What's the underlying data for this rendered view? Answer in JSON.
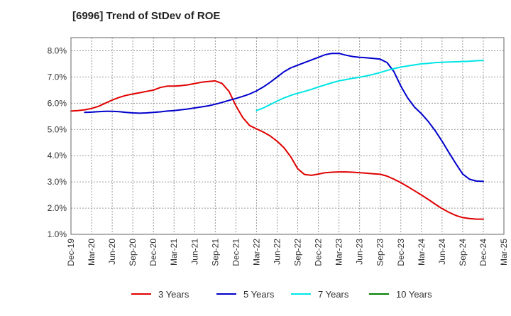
{
  "chart_data": {
    "type": "line",
    "title": "[6996]  Trend of StDev of ROE",
    "xlabel": "",
    "ylabel": "",
    "x_tick_labels": [
      "Dec-19",
      "Mar-20",
      "Jun-20",
      "Sep-20",
      "Dec-20",
      "Mar-21",
      "Jun-21",
      "Sep-21",
      "Dec-21",
      "Mar-22",
      "Jun-22",
      "Sep-22",
      "Dec-22",
      "Mar-23",
      "Jun-23",
      "Sep-23",
      "Dec-23",
      "Mar-24",
      "Jun-24",
      "Sep-24",
      "Dec-24",
      "Mar-25"
    ],
    "y_tick_labels": [
      "1.0%",
      "2.0%",
      "3.0%",
      "4.0%",
      "5.0%",
      "6.0%",
      "7.0%",
      "8.0%"
    ],
    "ylim": [
      1.0,
      8.5
    ],
    "grid": true,
    "legend_position": "bottom",
    "series": [
      {
        "name": "3 Years",
        "color": "#e00000",
        "points": [
          [
            "Dec-19",
            5.7
          ],
          [
            "Jan-20",
            5.72
          ],
          [
            "Feb-20",
            5.75
          ],
          [
            "Mar-20",
            5.8
          ],
          [
            "Apr-20",
            5.88
          ],
          [
            "May-20",
            6.0
          ],
          [
            "Jun-20",
            6.12
          ],
          [
            "Jul-20",
            6.22
          ],
          [
            "Aug-20",
            6.3
          ],
          [
            "Sep-20",
            6.35
          ],
          [
            "Oct-20",
            6.4
          ],
          [
            "Nov-20",
            6.45
          ],
          [
            "Dec-20",
            6.5
          ],
          [
            "Jan-21",
            6.6
          ],
          [
            "Feb-21",
            6.65
          ],
          [
            "Mar-21",
            6.65
          ],
          [
            "Apr-21",
            6.67
          ],
          [
            "May-21",
            6.7
          ],
          [
            "Jun-21",
            6.75
          ],
          [
            "Jul-21",
            6.8
          ],
          [
            "Aug-21",
            6.83
          ],
          [
            "Sep-21",
            6.85
          ],
          [
            "Oct-21",
            6.75
          ],
          [
            "Nov-21",
            6.45
          ],
          [
            "Dec-21",
            5.9
          ],
          [
            "Jan-22",
            5.45
          ],
          [
            "Feb-22",
            5.15
          ],
          [
            "Mar-22",
            5.02
          ],
          [
            "Apr-22",
            4.9
          ],
          [
            "May-22",
            4.75
          ],
          [
            "Jun-22",
            4.55
          ],
          [
            "Jul-22",
            4.3
          ],
          [
            "Aug-22",
            3.95
          ],
          [
            "Sep-22",
            3.5
          ],
          [
            "Oct-22",
            3.28
          ],
          [
            "Nov-22",
            3.25
          ],
          [
            "Dec-22",
            3.3
          ],
          [
            "Jan-23",
            3.35
          ],
          [
            "Feb-23",
            3.37
          ],
          [
            "Mar-23",
            3.38
          ],
          [
            "Apr-23",
            3.38
          ],
          [
            "May-23",
            3.37
          ],
          [
            "Jun-23",
            3.35
          ],
          [
            "Jul-23",
            3.33
          ],
          [
            "Aug-23",
            3.31
          ],
          [
            "Sep-23",
            3.29
          ],
          [
            "Oct-23",
            3.22
          ],
          [
            "Nov-23",
            3.1
          ],
          [
            "Dec-23",
            2.97
          ],
          [
            "Jan-24",
            2.82
          ],
          [
            "Feb-24",
            2.66
          ],
          [
            "Mar-24",
            2.5
          ],
          [
            "Apr-24",
            2.33
          ],
          [
            "May-24",
            2.15
          ],
          [
            "Jun-24",
            1.98
          ],
          [
            "Jul-24",
            1.84
          ],
          [
            "Aug-24",
            1.72
          ],
          [
            "Sep-24",
            1.64
          ],
          [
            "Oct-24",
            1.6
          ],
          [
            "Nov-24",
            1.58
          ],
          [
            "Dec-24",
            1.58
          ]
        ]
      },
      {
        "name": "5 Years",
        "color": "#0000cc",
        "points": [
          [
            "Feb-20",
            5.65
          ],
          [
            "Mar-20",
            5.66
          ],
          [
            "Apr-20",
            5.68
          ],
          [
            "May-20",
            5.69
          ],
          [
            "Jun-20",
            5.69
          ],
          [
            "Jul-20",
            5.68
          ],
          [
            "Aug-20",
            5.65
          ],
          [
            "Sep-20",
            5.63
          ],
          [
            "Oct-20",
            5.62
          ],
          [
            "Nov-20",
            5.63
          ],
          [
            "Dec-20",
            5.65
          ],
          [
            "Jan-21",
            5.67
          ],
          [
            "Feb-21",
            5.7
          ],
          [
            "Mar-21",
            5.72
          ],
          [
            "Apr-21",
            5.75
          ],
          [
            "May-21",
            5.78
          ],
          [
            "Jun-21",
            5.82
          ],
          [
            "Jul-21",
            5.86
          ],
          [
            "Aug-21",
            5.9
          ],
          [
            "Sep-21",
            5.96
          ],
          [
            "Oct-21",
            6.03
          ],
          [
            "Nov-21",
            6.11
          ],
          [
            "Dec-21",
            6.18
          ],
          [
            "Jan-22",
            6.26
          ],
          [
            "Feb-22",
            6.35
          ],
          [
            "Mar-22",
            6.47
          ],
          [
            "Apr-22",
            6.62
          ],
          [
            "May-22",
            6.8
          ],
          [
            "Jun-22",
            7.0
          ],
          [
            "Jul-22",
            7.2
          ],
          [
            "Aug-22",
            7.35
          ],
          [
            "Sep-22",
            7.45
          ],
          [
            "Oct-22",
            7.55
          ],
          [
            "Nov-22",
            7.65
          ],
          [
            "Dec-22",
            7.75
          ],
          [
            "Jan-23",
            7.85
          ],
          [
            "Feb-23",
            7.9
          ],
          [
            "Mar-23",
            7.9
          ],
          [
            "Apr-23",
            7.83
          ],
          [
            "May-23",
            7.78
          ],
          [
            "Jun-23",
            7.75
          ],
          [
            "Jul-23",
            7.73
          ],
          [
            "Aug-23",
            7.71
          ],
          [
            "Sep-23",
            7.68
          ],
          [
            "Oct-23",
            7.55
          ],
          [
            "Nov-23",
            7.2
          ],
          [
            "Dec-23",
            6.65
          ],
          [
            "Jan-24",
            6.2
          ],
          [
            "Feb-24",
            5.85
          ],
          [
            "Mar-24",
            5.6
          ],
          [
            "Apr-24",
            5.3
          ],
          [
            "May-24",
            4.95
          ],
          [
            "Jun-24",
            4.55
          ],
          [
            "Jul-24",
            4.12
          ],
          [
            "Aug-24",
            3.7
          ],
          [
            "Sep-24",
            3.3
          ],
          [
            "Oct-24",
            3.1
          ],
          [
            "Nov-24",
            3.03
          ],
          [
            "Dec-24",
            3.02
          ]
        ]
      },
      {
        "name": "7 Years",
        "color": "#00e5e5",
        "points": [
          [
            "Mar-22",
            5.72
          ],
          [
            "Apr-22",
            5.82
          ],
          [
            "May-22",
            5.95
          ],
          [
            "Jun-22",
            6.08
          ],
          [
            "Jul-22",
            6.2
          ],
          [
            "Aug-22",
            6.3
          ],
          [
            "Sep-22",
            6.38
          ],
          [
            "Oct-22",
            6.45
          ],
          [
            "Nov-22",
            6.53
          ],
          [
            "Dec-22",
            6.62
          ],
          [
            "Jan-23",
            6.7
          ],
          [
            "Feb-23",
            6.78
          ],
          [
            "Mar-23",
            6.85
          ],
          [
            "Apr-23",
            6.9
          ],
          [
            "May-23",
            6.95
          ],
          [
            "Jun-23",
            6.99
          ],
          [
            "Jul-23",
            7.04
          ],
          [
            "Aug-23",
            7.1
          ],
          [
            "Sep-23",
            7.17
          ],
          [
            "Oct-23",
            7.25
          ],
          [
            "Nov-23",
            7.32
          ],
          [
            "Dec-23",
            7.38
          ],
          [
            "Jan-24",
            7.42
          ],
          [
            "Feb-24",
            7.46
          ],
          [
            "Mar-24",
            7.5
          ],
          [
            "Apr-24",
            7.52
          ],
          [
            "May-24",
            7.55
          ],
          [
            "Jun-24",
            7.56
          ],
          [
            "Jul-24",
            7.57
          ],
          [
            "Aug-24",
            7.58
          ],
          [
            "Sep-24",
            7.59
          ],
          [
            "Oct-24",
            7.6
          ],
          [
            "Nov-24",
            7.62
          ],
          [
            "Dec-24",
            7.63
          ]
        ]
      },
      {
        "name": "10 Years",
        "color": "#008000",
        "points": []
      }
    ]
  }
}
